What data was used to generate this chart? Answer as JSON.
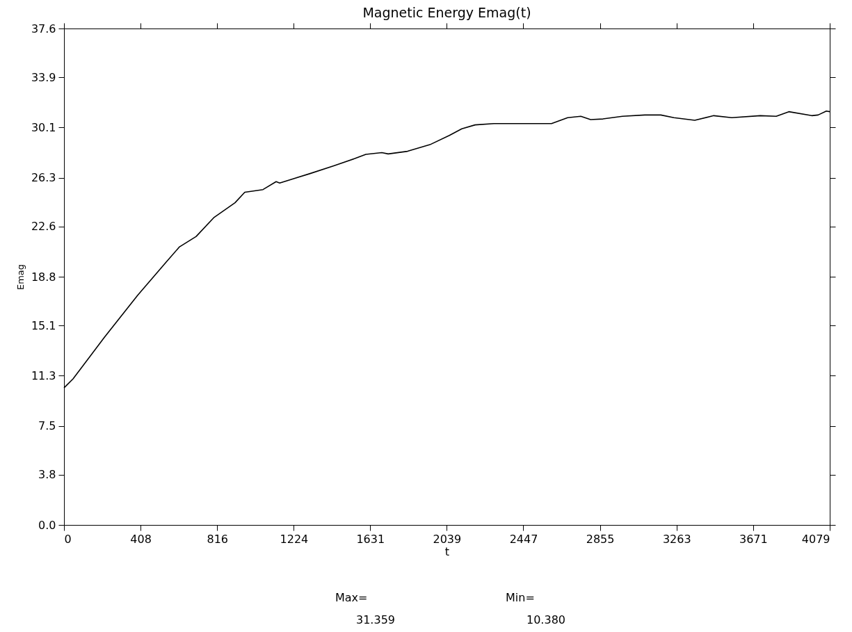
{
  "chart_data": {
    "type": "line",
    "title": "Magnetic Energy  Emag(t)",
    "xlabel": "t",
    "ylabel": "Emag",
    "x": [
      0,
      48,
      215,
      393,
      541,
      615,
      704,
      800,
      911,
      963,
      1060,
      1130,
      1149,
      1308,
      1437,
      1549,
      1608,
      1693,
      1727,
      1830,
      1949,
      2053,
      2119,
      2190,
      2290,
      2464,
      2530,
      2597,
      2683,
      2753,
      2805,
      2871,
      2975,
      3094,
      3179,
      3249,
      3360,
      3461,
      3557,
      3709,
      3794,
      3861,
      3983,
      4017,
      4061,
      4079
    ],
    "series": [
      {
        "color": "#000000",
        "values": [
          10.38,
          11.06,
          14.2,
          17.4,
          19.85,
          21.06,
          21.85,
          23.3,
          24.4,
          25.2,
          25.4,
          26.0,
          25.9,
          26.6,
          27.2,
          27.75,
          28.07,
          28.2,
          28.1,
          28.3,
          28.8,
          29.5,
          30.0,
          30.3,
          30.4,
          30.4,
          30.4,
          30.4,
          30.85,
          30.95,
          30.7,
          30.75,
          30.95,
          31.05,
          31.05,
          30.85,
          30.65,
          31.0,
          30.85,
          31.0,
          30.95,
          31.3,
          31.0,
          31.05,
          31.35,
          31.3
        ]
      }
    ],
    "xlim": [
      0,
      4079
    ],
    "xticks": [
      0,
      408,
      816,
      1224,
      1631,
      2039,
      2447,
      2855,
      3263,
      3671,
      4079
    ],
    "ylim": [
      0,
      37.6
    ],
    "yticks": [
      {
        "value": 0,
        "label": "0.0"
      },
      3.8,
      7.5,
      11.3,
      15.1,
      18.8,
      22.6,
      26.3,
      30.1,
      33.9,
      37.6
    ],
    "annotations": [
      "Max=",
      "31.359",
      "Min=",
      "10.380"
    ],
    "grid": false,
    "marker": "none",
    "line_style": "solid"
  }
}
